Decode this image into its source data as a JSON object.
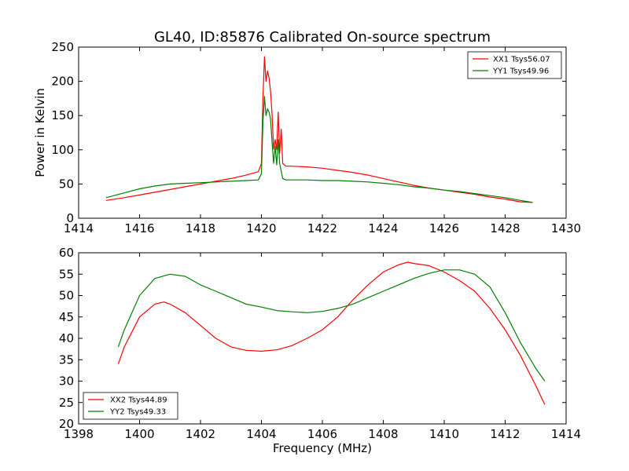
{
  "chart_data": [
    {
      "type": "line",
      "title": "GL40, ID:85876 Calibrated On-source spectrum",
      "xlabel": "",
      "ylabel": "Power in Kelvin",
      "xlim": [
        1414,
        1430
      ],
      "ylim": [
        0,
        250
      ],
      "xticks": [
        1414,
        1416,
        1418,
        1420,
        1422,
        1424,
        1426,
        1428,
        1430
      ],
      "yticks": [
        0,
        50,
        100,
        150,
        200,
        250
      ],
      "legend_position": "top-right",
      "series": [
        {
          "name": "XX1 Tsys56.07",
          "color": "#ff0000",
          "x": [
            1414.9,
            1415.5,
            1416.0,
            1416.5,
            1417.0,
            1417.5,
            1418.0,
            1418.5,
            1419.0,
            1419.5,
            1419.9,
            1420.0,
            1420.05,
            1420.1,
            1420.15,
            1420.2,
            1420.25,
            1420.3,
            1420.35,
            1420.4,
            1420.45,
            1420.5,
            1420.55,
            1420.6,
            1420.65,
            1420.7,
            1420.8,
            1421.0,
            1421.5,
            1422.0,
            1422.5,
            1423.0,
            1423.5,
            1424.0,
            1424.5,
            1425.0,
            1425.5,
            1426.0,
            1426.5,
            1427.0,
            1427.5,
            1428.0,
            1428.5,
            1428.9
          ],
          "values": [
            26,
            30,
            34,
            38,
            42,
            46,
            50,
            54,
            58,
            63,
            68,
            80,
            175,
            236,
            200,
            215,
            205,
            185,
            150,
            101,
            115,
            100,
            155,
            95,
            130,
            80,
            76,
            76,
            75,
            73,
            70,
            67,
            63,
            58,
            53,
            48,
            44,
            41,
            38,
            35,
            31,
            28,
            24,
            23
          ]
        },
        {
          "name": "YY1 Tsys49.96",
          "color": "#008000",
          "x": [
            1414.9,
            1415.5,
            1416.0,
            1416.5,
            1417.0,
            1417.5,
            1418.0,
            1418.5,
            1419.0,
            1419.5,
            1419.9,
            1420.0,
            1420.05,
            1420.1,
            1420.15,
            1420.2,
            1420.25,
            1420.3,
            1420.35,
            1420.4,
            1420.45,
            1420.5,
            1420.55,
            1420.6,
            1420.7,
            1420.8,
            1421.0,
            1421.5,
            1422.0,
            1422.5,
            1423.0,
            1423.5,
            1424.0,
            1424.5,
            1425.0,
            1425.5,
            1426.0,
            1426.5,
            1427.0,
            1427.5,
            1428.0,
            1428.5,
            1428.9
          ],
          "values": [
            30,
            37,
            43,
            47,
            50,
            51,
            52,
            53,
            54,
            55,
            56,
            65,
            140,
            178,
            150,
            160,
            155,
            145,
            110,
            80,
            105,
            78,
            115,
            80,
            58,
            56,
            56,
            56,
            55,
            55,
            54,
            53,
            51,
            49,
            46,
            44,
            41,
            39,
            36,
            33,
            30,
            26,
            23
          ]
        }
      ]
    },
    {
      "type": "line",
      "title": "",
      "xlabel": "Frequency (MHz)",
      "ylabel": "",
      "xlim": [
        1398,
        1414
      ],
      "ylim": [
        20,
        60
      ],
      "xticks": [
        1398,
        1400,
        1402,
        1404,
        1406,
        1408,
        1410,
        1412,
        1414
      ],
      "yticks": [
        20,
        25,
        30,
        35,
        40,
        45,
        50,
        55,
        60
      ],
      "legend_position": "bottom-left",
      "series": [
        {
          "name": "XX2 Tsys44.89",
          "color": "#ff0000",
          "x": [
            1399.3,
            1399.5,
            1400.0,
            1400.5,
            1400.8,
            1401.0,
            1401.5,
            1402.0,
            1402.5,
            1403.0,
            1403.5,
            1404.0,
            1404.5,
            1405.0,
            1405.5,
            1406.0,
            1406.5,
            1407.0,
            1407.5,
            1408.0,
            1408.5,
            1408.8,
            1409.0,
            1409.5,
            1410.0,
            1410.5,
            1411.0,
            1411.5,
            1412.0,
            1412.5,
            1413.0,
            1413.3
          ],
          "values": [
            34,
            38,
            45,
            48,
            48.5,
            48,
            46,
            43,
            40,
            38,
            37.2,
            37,
            37.3,
            38.3,
            40,
            42,
            45,
            49,
            52.5,
            55.5,
            57.2,
            57.8,
            57.5,
            57,
            55.5,
            53.5,
            51,
            47,
            42,
            36,
            29,
            24.5
          ]
        },
        {
          "name": "YY2 Tsys49.33",
          "color": "#008000",
          "x": [
            1399.3,
            1399.5,
            1400.0,
            1400.5,
            1401.0,
            1401.5,
            1402.0,
            1402.5,
            1403.0,
            1403.5,
            1404.0,
            1404.5,
            1405.0,
            1405.5,
            1406.0,
            1406.5,
            1407.0,
            1407.5,
            1408.0,
            1408.5,
            1409.0,
            1409.5,
            1410.0,
            1410.5,
            1411.0,
            1411.5,
            1412.0,
            1412.5,
            1413.0,
            1413.3
          ],
          "values": [
            38,
            42,
            50,
            54,
            55,
            54.5,
            52.5,
            51,
            49.5,
            48,
            47.3,
            46.5,
            46.2,
            46,
            46.3,
            47,
            48,
            49.5,
            51,
            52.5,
            54,
            55.2,
            56,
            56,
            55,
            52,
            46,
            39,
            33,
            30
          ]
        }
      ]
    }
  ]
}
